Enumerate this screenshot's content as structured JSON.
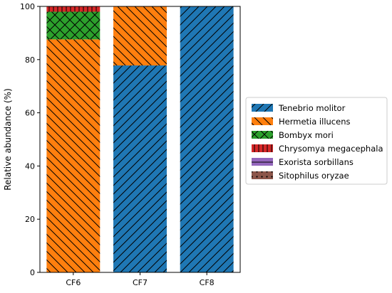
{
  "chart_data": {
    "type": "bar",
    "stacked": true,
    "categories": [
      "CF6",
      "CF7",
      "CF8"
    ],
    "ylabel": "Relative abundance (%)",
    "xlabel": "",
    "ylim": [
      0,
      100
    ],
    "yticks": [
      0,
      20,
      40,
      60,
      80,
      100
    ],
    "legend_position": "right",
    "series": [
      {
        "name": "Tenebrio molitor",
        "values": [
          0,
          77.8,
          100
        ],
        "color": "#1f77b4",
        "hatch": "diagonal-forward"
      },
      {
        "name": "Hermetia illucens",
        "values": [
          87.6,
          22.2,
          0
        ],
        "color": "#ff7f0e",
        "hatch": "diagonal-back"
      },
      {
        "name": "Bombyx mori",
        "values": [
          10.4,
          0,
          0
        ],
        "color": "#2ca02c",
        "hatch": "crosshatch"
      },
      {
        "name": "Chrysomya megacephala",
        "values": [
          2.0,
          0,
          0
        ],
        "color": "#d62728",
        "hatch": "grid"
      },
      {
        "name": "Exorista sorbillans",
        "values": [
          0,
          0,
          0
        ],
        "color": "#9467bd",
        "hatch": "horizontal"
      },
      {
        "name": "Sitophilus oryzae",
        "values": [
          0,
          0,
          0
        ],
        "color": "#8c564b",
        "hatch": "dots"
      }
    ]
  }
}
